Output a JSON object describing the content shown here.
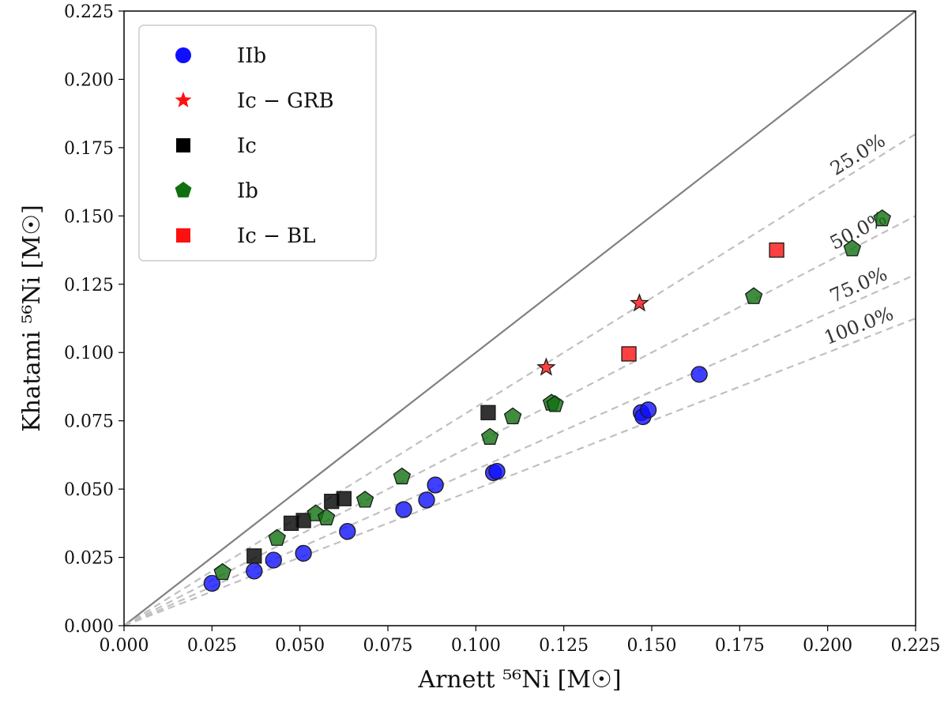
{
  "chart_data": {
    "type": "scatter",
    "title": "",
    "xlabel": "Arnett ⁵⁶Ni [M☉]",
    "ylabel": "Khatami ⁵⁶Ni [M☉]",
    "xlim": [
      0.0,
      0.225
    ],
    "ylim": [
      0.0,
      0.225
    ],
    "xticks": [
      "0.000",
      "0.025",
      "0.050",
      "0.075",
      "0.100",
      "0.125",
      "0.150",
      "0.175",
      "0.200",
      "0.225"
    ],
    "yticks": [
      "0.000",
      "0.025",
      "0.050",
      "0.075",
      "0.100",
      "0.125",
      "0.150",
      "0.175",
      "0.200",
      "0.225"
    ],
    "grid": false,
    "legend_position": "top-left",
    "reference_lines": [
      {
        "label": "",
        "slope": 1.0,
        "style": "solid",
        "color": "#808080"
      },
      {
        "label": "25.0%",
        "slope": 0.8,
        "style": "dashed",
        "color": "#c0c0c0"
      },
      {
        "label": "50.0%",
        "slope": 0.6667,
        "style": "dashed",
        "color": "#c0c0c0"
      },
      {
        "label": "75.0%",
        "slope": 0.5714,
        "style": "dashed",
        "color": "#c0c0c0"
      },
      {
        "label": "100.0%",
        "slope": 0.5,
        "style": "dashed",
        "color": "#c0c0c0"
      }
    ],
    "series": [
      {
        "name": "IIb",
        "marker": "circle",
        "color": "#1010ff",
        "points": [
          [
            0.025,
            0.0155
          ],
          [
            0.037,
            0.02
          ],
          [
            0.0425,
            0.024
          ],
          [
            0.051,
            0.0265
          ],
          [
            0.0635,
            0.0345
          ],
          [
            0.0795,
            0.0425
          ],
          [
            0.086,
            0.046
          ],
          [
            0.0885,
            0.0515
          ],
          [
            0.105,
            0.056
          ],
          [
            0.106,
            0.0565
          ],
          [
            0.147,
            0.078
          ],
          [
            0.1475,
            0.0765
          ],
          [
            0.149,
            0.079
          ],
          [
            0.1635,
            0.092
          ]
        ]
      },
      {
        "name": "Ic − GRB",
        "marker": "star",
        "color": "#ff1010",
        "points": [
          [
            0.12,
            0.0945
          ],
          [
            0.1465,
            0.118
          ]
        ]
      },
      {
        "name": "Ic",
        "marker": "square",
        "color": "#000000",
        "points": [
          [
            0.037,
            0.0255
          ],
          [
            0.0475,
            0.0375
          ],
          [
            0.051,
            0.0385
          ],
          [
            0.059,
            0.0455
          ],
          [
            0.0625,
            0.0465
          ],
          [
            0.1035,
            0.078
          ]
        ]
      },
      {
        "name": "Ib",
        "marker": "pentagon",
        "color": "#107010",
        "points": [
          [
            0.028,
            0.0195
          ],
          [
            0.0435,
            0.032
          ],
          [
            0.0545,
            0.041
          ],
          [
            0.0575,
            0.0395
          ],
          [
            0.0685,
            0.046
          ],
          [
            0.079,
            0.0545
          ],
          [
            0.104,
            0.069
          ],
          [
            0.1105,
            0.0765
          ],
          [
            0.1215,
            0.0815
          ],
          [
            0.1225,
            0.081
          ],
          [
            0.179,
            0.1205
          ],
          [
            0.207,
            0.138
          ],
          [
            0.2155,
            0.149
          ]
        ]
      },
      {
        "name": "Ic − BL",
        "marker": "square",
        "color": "#ff1010",
        "points": [
          [
            0.1435,
            0.0995
          ],
          [
            0.1855,
            0.1375
          ]
        ]
      }
    ]
  }
}
